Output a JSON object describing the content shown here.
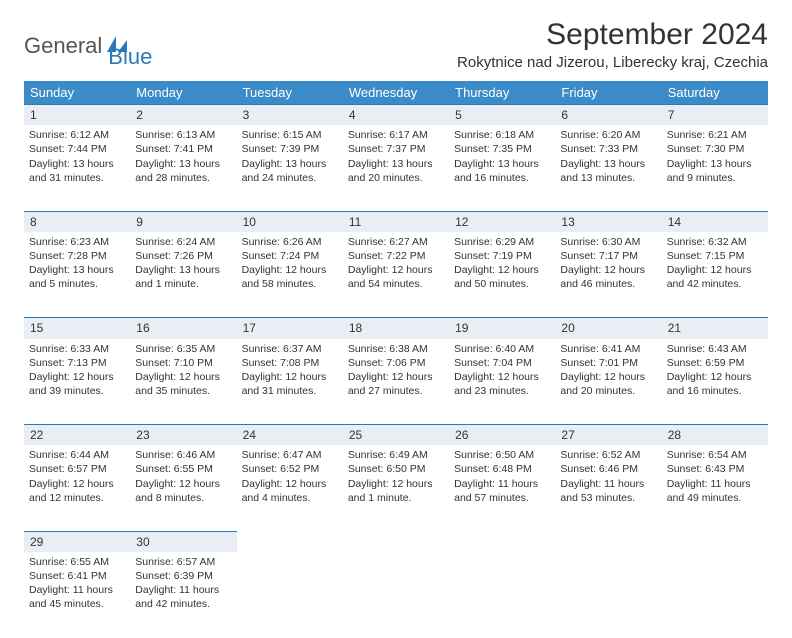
{
  "brand": {
    "part1": "General",
    "part2": "Blue"
  },
  "title": "September 2024",
  "location": "Rokytnice nad Jizerou, Liberecky kraj, Czechia",
  "colors": {
    "header_bg": "#3b8bc8",
    "daynum_bg": "#e8eef3",
    "rule": "#2a7ab9",
    "brand_blue": "#2a7ab9",
    "text": "#333333"
  },
  "weekdays": [
    "Sunday",
    "Monday",
    "Tuesday",
    "Wednesday",
    "Thursday",
    "Friday",
    "Saturday"
  ],
  "weeks": [
    [
      {
        "n": "1",
        "sunrise": "Sunrise: 6:12 AM",
        "sunset": "Sunset: 7:44 PM",
        "day1": "Daylight: 13 hours",
        "day2": "and 31 minutes."
      },
      {
        "n": "2",
        "sunrise": "Sunrise: 6:13 AM",
        "sunset": "Sunset: 7:41 PM",
        "day1": "Daylight: 13 hours",
        "day2": "and 28 minutes."
      },
      {
        "n": "3",
        "sunrise": "Sunrise: 6:15 AM",
        "sunset": "Sunset: 7:39 PM",
        "day1": "Daylight: 13 hours",
        "day2": "and 24 minutes."
      },
      {
        "n": "4",
        "sunrise": "Sunrise: 6:17 AM",
        "sunset": "Sunset: 7:37 PM",
        "day1": "Daylight: 13 hours",
        "day2": "and 20 minutes."
      },
      {
        "n": "5",
        "sunrise": "Sunrise: 6:18 AM",
        "sunset": "Sunset: 7:35 PM",
        "day1": "Daylight: 13 hours",
        "day2": "and 16 minutes."
      },
      {
        "n": "6",
        "sunrise": "Sunrise: 6:20 AM",
        "sunset": "Sunset: 7:33 PM",
        "day1": "Daylight: 13 hours",
        "day2": "and 13 minutes."
      },
      {
        "n": "7",
        "sunrise": "Sunrise: 6:21 AM",
        "sunset": "Sunset: 7:30 PM",
        "day1": "Daylight: 13 hours",
        "day2": "and 9 minutes."
      }
    ],
    [
      {
        "n": "8",
        "sunrise": "Sunrise: 6:23 AM",
        "sunset": "Sunset: 7:28 PM",
        "day1": "Daylight: 13 hours",
        "day2": "and 5 minutes."
      },
      {
        "n": "9",
        "sunrise": "Sunrise: 6:24 AM",
        "sunset": "Sunset: 7:26 PM",
        "day1": "Daylight: 13 hours",
        "day2": "and 1 minute."
      },
      {
        "n": "10",
        "sunrise": "Sunrise: 6:26 AM",
        "sunset": "Sunset: 7:24 PM",
        "day1": "Daylight: 12 hours",
        "day2": "and 58 minutes."
      },
      {
        "n": "11",
        "sunrise": "Sunrise: 6:27 AM",
        "sunset": "Sunset: 7:22 PM",
        "day1": "Daylight: 12 hours",
        "day2": "and 54 minutes."
      },
      {
        "n": "12",
        "sunrise": "Sunrise: 6:29 AM",
        "sunset": "Sunset: 7:19 PM",
        "day1": "Daylight: 12 hours",
        "day2": "and 50 minutes."
      },
      {
        "n": "13",
        "sunrise": "Sunrise: 6:30 AM",
        "sunset": "Sunset: 7:17 PM",
        "day1": "Daylight: 12 hours",
        "day2": "and 46 minutes."
      },
      {
        "n": "14",
        "sunrise": "Sunrise: 6:32 AM",
        "sunset": "Sunset: 7:15 PM",
        "day1": "Daylight: 12 hours",
        "day2": "and 42 minutes."
      }
    ],
    [
      {
        "n": "15",
        "sunrise": "Sunrise: 6:33 AM",
        "sunset": "Sunset: 7:13 PM",
        "day1": "Daylight: 12 hours",
        "day2": "and 39 minutes."
      },
      {
        "n": "16",
        "sunrise": "Sunrise: 6:35 AM",
        "sunset": "Sunset: 7:10 PM",
        "day1": "Daylight: 12 hours",
        "day2": "and 35 minutes."
      },
      {
        "n": "17",
        "sunrise": "Sunrise: 6:37 AM",
        "sunset": "Sunset: 7:08 PM",
        "day1": "Daylight: 12 hours",
        "day2": "and 31 minutes."
      },
      {
        "n": "18",
        "sunrise": "Sunrise: 6:38 AM",
        "sunset": "Sunset: 7:06 PM",
        "day1": "Daylight: 12 hours",
        "day2": "and 27 minutes."
      },
      {
        "n": "19",
        "sunrise": "Sunrise: 6:40 AM",
        "sunset": "Sunset: 7:04 PM",
        "day1": "Daylight: 12 hours",
        "day2": "and 23 minutes."
      },
      {
        "n": "20",
        "sunrise": "Sunrise: 6:41 AM",
        "sunset": "Sunset: 7:01 PM",
        "day1": "Daylight: 12 hours",
        "day2": "and 20 minutes."
      },
      {
        "n": "21",
        "sunrise": "Sunrise: 6:43 AM",
        "sunset": "Sunset: 6:59 PM",
        "day1": "Daylight: 12 hours",
        "day2": "and 16 minutes."
      }
    ],
    [
      {
        "n": "22",
        "sunrise": "Sunrise: 6:44 AM",
        "sunset": "Sunset: 6:57 PM",
        "day1": "Daylight: 12 hours",
        "day2": "and 12 minutes."
      },
      {
        "n": "23",
        "sunrise": "Sunrise: 6:46 AM",
        "sunset": "Sunset: 6:55 PM",
        "day1": "Daylight: 12 hours",
        "day2": "and 8 minutes."
      },
      {
        "n": "24",
        "sunrise": "Sunrise: 6:47 AM",
        "sunset": "Sunset: 6:52 PM",
        "day1": "Daylight: 12 hours",
        "day2": "and 4 minutes."
      },
      {
        "n": "25",
        "sunrise": "Sunrise: 6:49 AM",
        "sunset": "Sunset: 6:50 PM",
        "day1": "Daylight: 12 hours",
        "day2": "and 1 minute."
      },
      {
        "n": "26",
        "sunrise": "Sunrise: 6:50 AM",
        "sunset": "Sunset: 6:48 PM",
        "day1": "Daylight: 11 hours",
        "day2": "and 57 minutes."
      },
      {
        "n": "27",
        "sunrise": "Sunrise: 6:52 AM",
        "sunset": "Sunset: 6:46 PM",
        "day1": "Daylight: 11 hours",
        "day2": "and 53 minutes."
      },
      {
        "n": "28",
        "sunrise": "Sunrise: 6:54 AM",
        "sunset": "Sunset: 6:43 PM",
        "day1": "Daylight: 11 hours",
        "day2": "and 49 minutes."
      }
    ],
    [
      {
        "n": "29",
        "sunrise": "Sunrise: 6:55 AM",
        "sunset": "Sunset: 6:41 PM",
        "day1": "Daylight: 11 hours",
        "day2": "and 45 minutes."
      },
      {
        "n": "30",
        "sunrise": "Sunrise: 6:57 AM",
        "sunset": "Sunset: 6:39 PM",
        "day1": "Daylight: 11 hours",
        "day2": "and 42 minutes."
      },
      null,
      null,
      null,
      null,
      null
    ]
  ]
}
